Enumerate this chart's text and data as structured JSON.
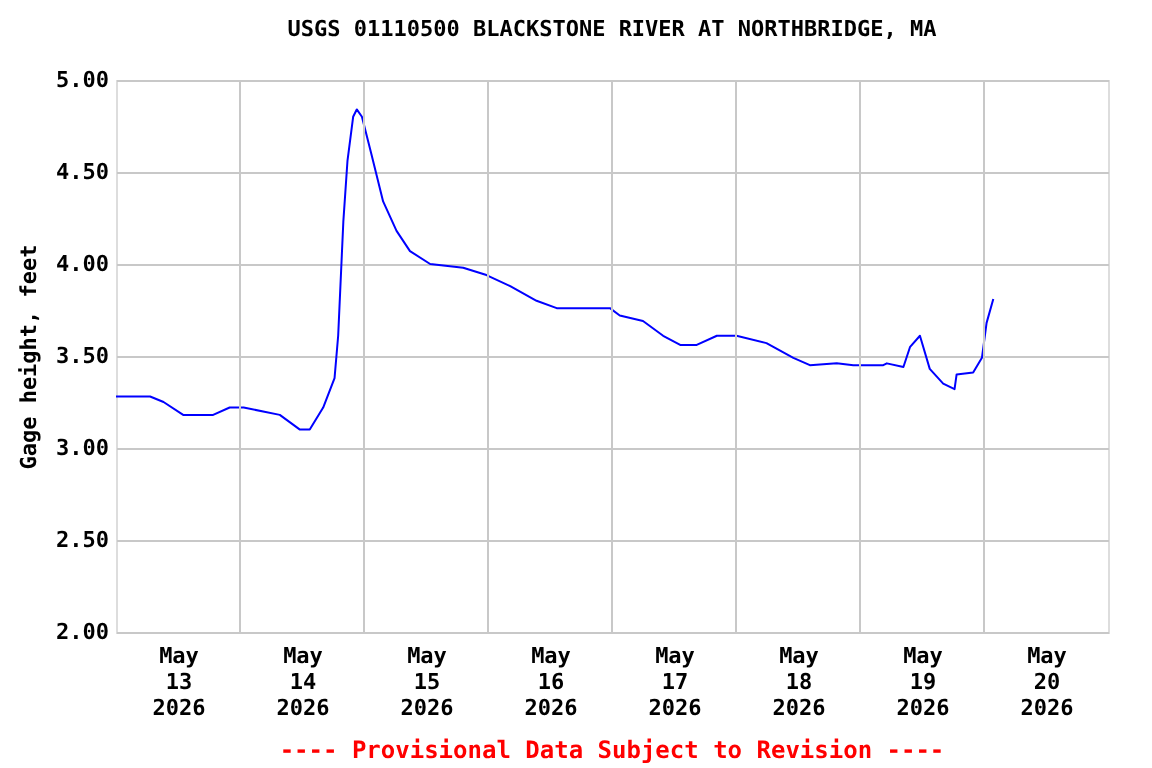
{
  "chart_data": {
    "type": "line",
    "title": "USGS 01110500 BLACKSTONE RIVER AT NORTHBRIDGE, MA",
    "ylabel": "Gage height, feet",
    "annotations": [
      "---- Provisional Data Subject to Revision ----"
    ],
    "series": [
      {
        "color": "#0000ff",
        "x": [
          "2026-05-13T00:00",
          "2026-05-13T06:36",
          "2026-05-13T09:12",
          "2026-05-13T13:00",
          "2026-05-13T18:48",
          "2026-05-13T22:00",
          "2026-05-14T00:42",
          "2026-05-14T07:42",
          "2026-05-14T11:36",
          "2026-05-14T13:30",
          "2026-05-14T16:06",
          "2026-05-14T18:18",
          "2026-05-14T19:00",
          "2026-05-14T20:00",
          "2026-05-14T20:48",
          "2026-05-14T21:54",
          "2026-05-14T22:36",
          "2026-05-14T23:36",
          "2026-05-15T01:24",
          "2026-05-15T03:42",
          "2026-05-15T06:18",
          "2026-05-15T08:54",
          "2026-05-15T12:48",
          "2026-05-15T19:12",
          "2026-05-15T23:42",
          "2026-05-16T04:18",
          "2026-05-16T09:24",
          "2026-05-16T13:18",
          "2026-05-16T23:36",
          "2026-05-17T01:30",
          "2026-05-17T06:00",
          "2026-05-17T09:54",
          "2026-05-17T13:12",
          "2026-05-17T16:24",
          "2026-05-17T20:18",
          "2026-05-18T00:06",
          "2026-05-18T05:54",
          "2026-05-18T11:06",
          "2026-05-18T14:18",
          "2026-05-18T19:30",
          "2026-05-18T22:42",
          "2026-05-19T04:30",
          "2026-05-19T05:12",
          "2026-05-19T08:24",
          "2026-05-19T09:42",
          "2026-05-19T11:36",
          "2026-05-19T13:30",
          "2026-05-19T16:06",
          "2026-05-19T18:18",
          "2026-05-19T18:42",
          "2026-05-19T21:54",
          "2026-05-19T23:36",
          "2026-05-20T00:30",
          "2026-05-20T01:48"
        ],
        "values": [
          3.28,
          3.28,
          3.25,
          3.18,
          3.18,
          3.22,
          3.22,
          3.18,
          3.1,
          3.1,
          3.22,
          3.38,
          3.61,
          4.23,
          4.56,
          4.8,
          4.84,
          4.8,
          4.6,
          4.34,
          4.18,
          4.07,
          4.0,
          3.98,
          3.94,
          3.88,
          3.8,
          3.76,
          3.76,
          3.72,
          3.69,
          3.61,
          3.56,
          3.56,
          3.61,
          3.61,
          3.57,
          3.49,
          3.45,
          3.46,
          3.45,
          3.45,
          3.46,
          3.44,
          3.55,
          3.61,
          3.43,
          3.35,
          3.32,
          3.4,
          3.41,
          3.49,
          3.68,
          3.81
        ]
      }
    ],
    "ylim": [
      2,
      5
    ],
    "yticks": [
      {
        "value": 2,
        "label": "2.00"
      },
      {
        "value": 2.5,
        "label": "2.50"
      },
      {
        "value": 3,
        "label": "3.00"
      },
      {
        "value": 3.5,
        "label": "3.50"
      },
      {
        "value": 4,
        "label": "4.00"
      },
      {
        "value": 4.5,
        "label": "4.50"
      },
      {
        "value": 5,
        "label": "5.00"
      }
    ],
    "xlim": [
      "2026-05-13T00:00",
      "2026-05-21T00:00"
    ],
    "xticks": [
      {
        "value": "2026-05-13T12:00",
        "label": "May\n13\n2026"
      },
      {
        "value": "2026-05-14T12:00",
        "label": "May\n14\n2026"
      },
      {
        "value": "2026-05-15T12:00",
        "label": "May\n15\n2026"
      },
      {
        "value": "2026-05-16T12:00",
        "label": "May\n16\n2026"
      },
      {
        "value": "2026-05-17T12:00",
        "label": "May\n17\n2026"
      },
      {
        "value": "2026-05-18T12:00",
        "label": "May\n18\n2026"
      },
      {
        "value": "2026-05-19T12:00",
        "label": "May\n19\n2026"
      },
      {
        "value": "2026-05-20T12:00",
        "label": "May\n20\n2026"
      },
      {
        "value": "2026-05-14T00:00",
        "label": null
      },
      {
        "value": "2026-05-15T00:00",
        "label": null
      },
      {
        "value": "2026-05-16T00:00",
        "label": null
      },
      {
        "value": "2026-05-17T00:00",
        "label": null
      },
      {
        "value": "2026-05-18T00:00",
        "label": null
      },
      {
        "value": "2026-05-19T00:00",
        "label": null
      },
      {
        "value": "2026-05-20T00:00",
        "label": null
      }
    ],
    "grid": true,
    "line_style": "solid",
    "marker": "none"
  }
}
